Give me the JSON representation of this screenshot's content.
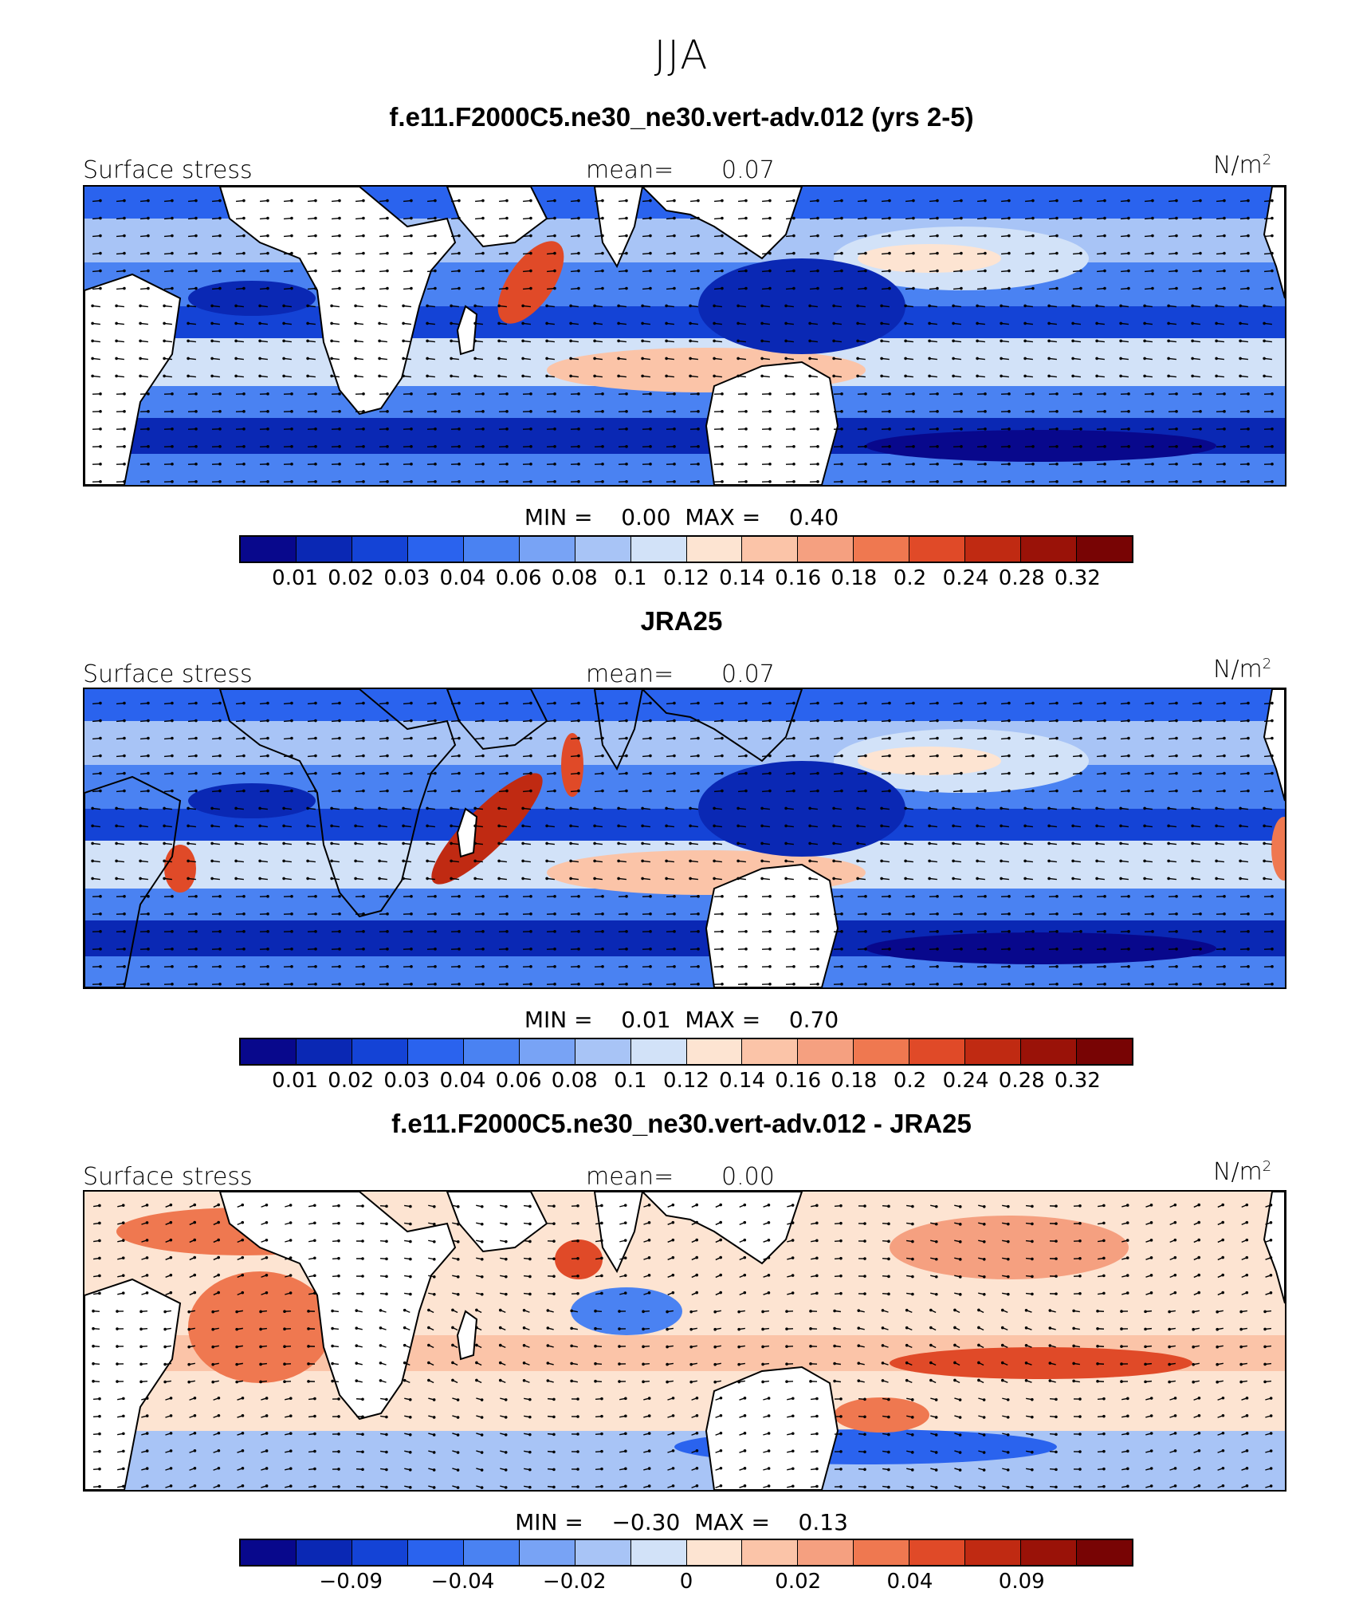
{
  "page_title": "JJA",
  "panels": [
    {
      "title": "f.e11.F2000C5.ne30_ne30.vert-adv.012 (yrs 2-5)",
      "field_label": "Surface stress",
      "mean_label": "mean=",
      "mean_value": "0.07",
      "unit": "N/m",
      "unit_exp": "2",
      "min_label": "MIN =",
      "min_value": "0.00",
      "max_label": "MAX =",
      "max_value": "0.40",
      "colorbar_ticks": [
        "0.01",
        "0.02",
        "0.03",
        "0.04",
        "0.06",
        "0.08",
        "0.1",
        "0.12",
        "0.14",
        "0.16",
        "0.18",
        "0.2",
        "0.24",
        "0.28",
        "0.32"
      ]
    },
    {
      "title": "JRA25",
      "field_label": "Surface stress",
      "mean_label": "mean=",
      "mean_value": "0.07",
      "unit": "N/m",
      "unit_exp": "2",
      "min_label": "MIN =",
      "min_value": "0.01",
      "max_label": "MAX =",
      "max_value": "0.70",
      "colorbar_ticks": [
        "0.01",
        "0.02",
        "0.03",
        "0.04",
        "0.06",
        "0.08",
        "0.1",
        "0.12",
        "0.14",
        "0.16",
        "0.18",
        "0.2",
        "0.24",
        "0.28",
        "0.32"
      ]
    },
    {
      "title": "f.e11.F2000C5.ne30_ne30.vert-adv.012 - JRA25",
      "field_label": "Surface stress",
      "mean_label": "mean=",
      "mean_value": "0.00",
      "unit": "N/m",
      "unit_exp": "2",
      "min_label": "MIN =",
      "min_value": "−0.30",
      "max_label": "MAX =",
      "max_value": "0.13",
      "colorbar_ticks": [
        "−0.09",
        "−0.04",
        "−0.02",
        "0",
        "0.02",
        "0.04",
        "0.09"
      ]
    }
  ],
  "colors": {
    "sequential": [
      "#08088c",
      "#0a28b4",
      "#1443d6",
      "#2a63ee",
      "#4a82f2",
      "#78a3f5",
      "#a8c4f6",
      "#d2e2f8",
      "#fde4d2",
      "#fbc4a8",
      "#f5a080",
      "#ef7850",
      "#e04a28",
      "#c02a12",
      "#9a1208",
      "#780404"
    ],
    "diverging": [
      "#08088c",
      "#0a28b4",
      "#1443d6",
      "#2a63ee",
      "#4a82f2",
      "#78a3f5",
      "#a8c4f6",
      "#d2e2f8",
      "#fde4d2",
      "#fbc4a8",
      "#f5a080",
      "#ef7850",
      "#e04a28",
      "#c02a12",
      "#9a1208",
      "#780404"
    ]
  },
  "chart_data": [
    {
      "type": "heatmap",
      "title": "f.e11.F2000C5.ne30_ne30.vert-adv.012 (yrs 2-5)",
      "variable": "Surface stress",
      "unit": "N/m2",
      "mean": 0.07,
      "min": 0.0,
      "max": 0.4,
      "contour_levels": [
        0.01,
        0.02,
        0.03,
        0.04,
        0.06,
        0.08,
        0.1,
        0.12,
        0.14,
        0.16,
        0.18,
        0.2,
        0.24,
        0.28,
        0.32
      ]
    },
    {
      "type": "heatmap",
      "title": "JRA25",
      "variable": "Surface stress",
      "unit": "N/m2",
      "mean": 0.07,
      "min": 0.01,
      "max": 0.7,
      "contour_levels": [
        0.01,
        0.02,
        0.03,
        0.04,
        0.06,
        0.08,
        0.1,
        0.12,
        0.14,
        0.16,
        0.18,
        0.2,
        0.24,
        0.28,
        0.32
      ]
    },
    {
      "type": "heatmap",
      "title": "f.e11.F2000C5.ne30_ne30.vert-adv.012 - JRA25",
      "variable": "Surface stress",
      "unit": "N/m2",
      "mean": 0.0,
      "min": -0.3,
      "max": 0.13,
      "contour_levels": [
        -0.09,
        -0.04,
        -0.02,
        0,
        0.02,
        0.04,
        0.09
      ]
    }
  ]
}
